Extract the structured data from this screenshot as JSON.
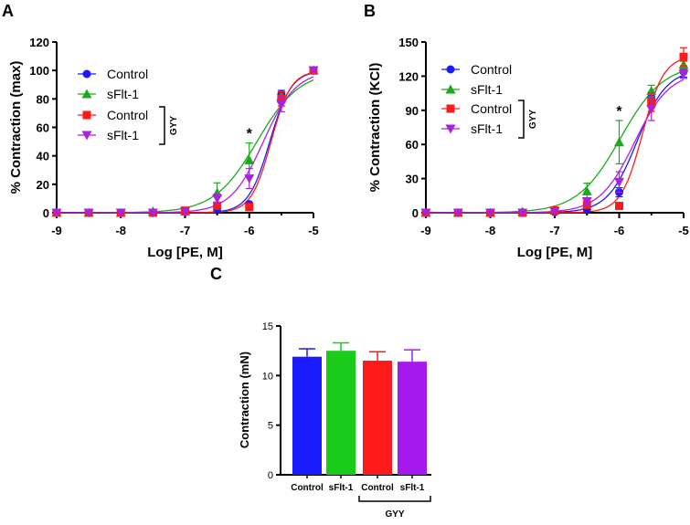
{
  "chart_data": [
    {
      "panel": "A",
      "type": "line",
      "xlabel": "Log [PE, M]",
      "ylabel": "% Contraction (max)",
      "xlim": [
        -9,
        -5
      ],
      "ylim": [
        0,
        120
      ],
      "xticks": [
        "-9",
        "-8",
        "-7",
        "-6",
        "-5"
      ],
      "yticks": [
        "0",
        "20",
        "40",
        "60",
        "80",
        "100",
        "120"
      ],
      "x": [
        -9,
        -8.5,
        -8,
        -7.5,
        -7,
        -6.5,
        -6,
        -5.5,
        -5
      ],
      "legend": [
        "Control",
        "sFlt-1",
        "Control",
        "sFlt-1"
      ],
      "group_label": "GYY",
      "annotation": "*",
      "series": [
        {
          "name": "Control",
          "color": "#1a1aff",
          "marker": "circle",
          "values": [
            0,
            0,
            0,
            0,
            0.5,
            2.5,
            6,
            83,
            100
          ],
          "errors": [
            0,
            0,
            0,
            0,
            0,
            1,
            1,
            3,
            0
          ],
          "fit": {
            "bottom": 0,
            "top": 100,
            "logEC50": -5.68,
            "hill": 2.6
          }
        },
        {
          "name": "sFlt-1",
          "color": "#1aaa1a",
          "marker": "triangle-up",
          "values": [
            0,
            0,
            0,
            1,
            1,
            14,
            37,
            82,
            100
          ],
          "errors": [
            0,
            0,
            0,
            1,
            0,
            7,
            12,
            3,
            0
          ],
          "fit": {
            "bottom": 0,
            "top": 100,
            "logEC50": -5.88,
            "hill": 1.3
          }
        },
        {
          "name": "Control (GYY)",
          "color": "#ff1a1a",
          "marker": "square",
          "values": [
            0,
            0,
            0,
            0,
            1.5,
            5,
            4,
            80,
            100
          ],
          "errors": [
            0,
            0,
            0,
            0,
            0,
            2,
            1,
            5,
            0
          ],
          "fit": {
            "bottom": 0,
            "top": 100,
            "logEC50": -5.66,
            "hill": 2.8
          }
        },
        {
          "name": "sFlt-1 (GYY)",
          "color": "#aa22dd",
          "marker": "triangle-down",
          "values": [
            0,
            0,
            0,
            0,
            1,
            10,
            24,
            76,
            100
          ],
          "errors": [
            0,
            0,
            0,
            0,
            0,
            3,
            7,
            5,
            0
          ],
          "fit": {
            "bottom": 0,
            "top": 100,
            "logEC50": -5.78,
            "hill": 1.7
          }
        }
      ]
    },
    {
      "panel": "B",
      "type": "line",
      "xlabel": "Log [PE, M]",
      "ylabel": "% Contraction (KCl)",
      "xlim": [
        -9,
        -5
      ],
      "ylim": [
        0,
        150
      ],
      "xticks": [
        "-9",
        "-8",
        "-7",
        "-6",
        "-5"
      ],
      "yticks": [
        "0",
        "30",
        "60",
        "90",
        "120",
        "150"
      ],
      "x": [
        -9,
        -8.5,
        -8,
        -7.5,
        -7,
        -6.5,
        -6,
        -5.5,
        -5
      ],
      "legend": [
        "Control",
        "sFlt-1",
        "Control",
        "sFlt-1"
      ],
      "group_label": "GYY",
      "annotation": "*",
      "series": [
        {
          "name": "Control",
          "color": "#1a1aff",
          "marker": "circle",
          "values": [
            0,
            0,
            0,
            0,
            0.5,
            3,
            18,
            101,
            124
          ],
          "errors": [
            0,
            0,
            0,
            0,
            0,
            1,
            4,
            5,
            5
          ],
          "fit": {
            "bottom": 0,
            "top": 126,
            "logEC50": -5.72,
            "hill": 1.9
          }
        },
        {
          "name": "sFlt-1",
          "color": "#1aaa1a",
          "marker": "triangle-up",
          "values": [
            0,
            0,
            0,
            1,
            2,
            19,
            62,
            107,
            130
          ],
          "errors": [
            0,
            0,
            0,
            1,
            0,
            7,
            19,
            5,
            3
          ],
          "fit": {
            "bottom": 0,
            "top": 131,
            "logEC50": -5.98,
            "hill": 1.3
          }
        },
        {
          "name": "Control (GYY)",
          "color": "#ff1a1a",
          "marker": "square",
          "values": [
            0,
            0,
            0,
            0,
            2,
            7,
            6,
            97,
            137
          ],
          "errors": [
            0,
            0,
            0,
            0,
            0,
            2,
            2,
            8,
            8
          ],
          "fit": {
            "bottom": 0,
            "top": 138,
            "logEC50": -5.64,
            "hill": 2.6
          }
        },
        {
          "name": "sFlt-1 (GYY)",
          "color": "#aa22dd",
          "marker": "triangle-down",
          "values": [
            0,
            0,
            0,
            0,
            1,
            10,
            27,
            91,
            122
          ],
          "errors": [
            0,
            0,
            0,
            0,
            0,
            3,
            9,
            10,
            4
          ],
          "fit": {
            "bottom": 0,
            "top": 124,
            "logEC50": -5.76,
            "hill": 1.6
          }
        }
      ]
    },
    {
      "panel": "C",
      "type": "bar",
      "ylabel": "Contraction (mN)",
      "ylim": [
        0,
        15
      ],
      "yticks": [
        "0",
        "5",
        "10",
        "15"
      ],
      "categories": [
        "Control",
        "sFlt-1",
        "Control",
        "sFlt-1"
      ],
      "group_label": "GYY",
      "values": [
        11.9,
        12.5,
        11.5,
        11.4
      ],
      "errors": [
        0.8,
        0.8,
        0.9,
        1.2
      ],
      "colors": [
        "#1a1aff",
        "#1acc1a",
        "#ff1a1a",
        "#a61aee"
      ]
    }
  ]
}
